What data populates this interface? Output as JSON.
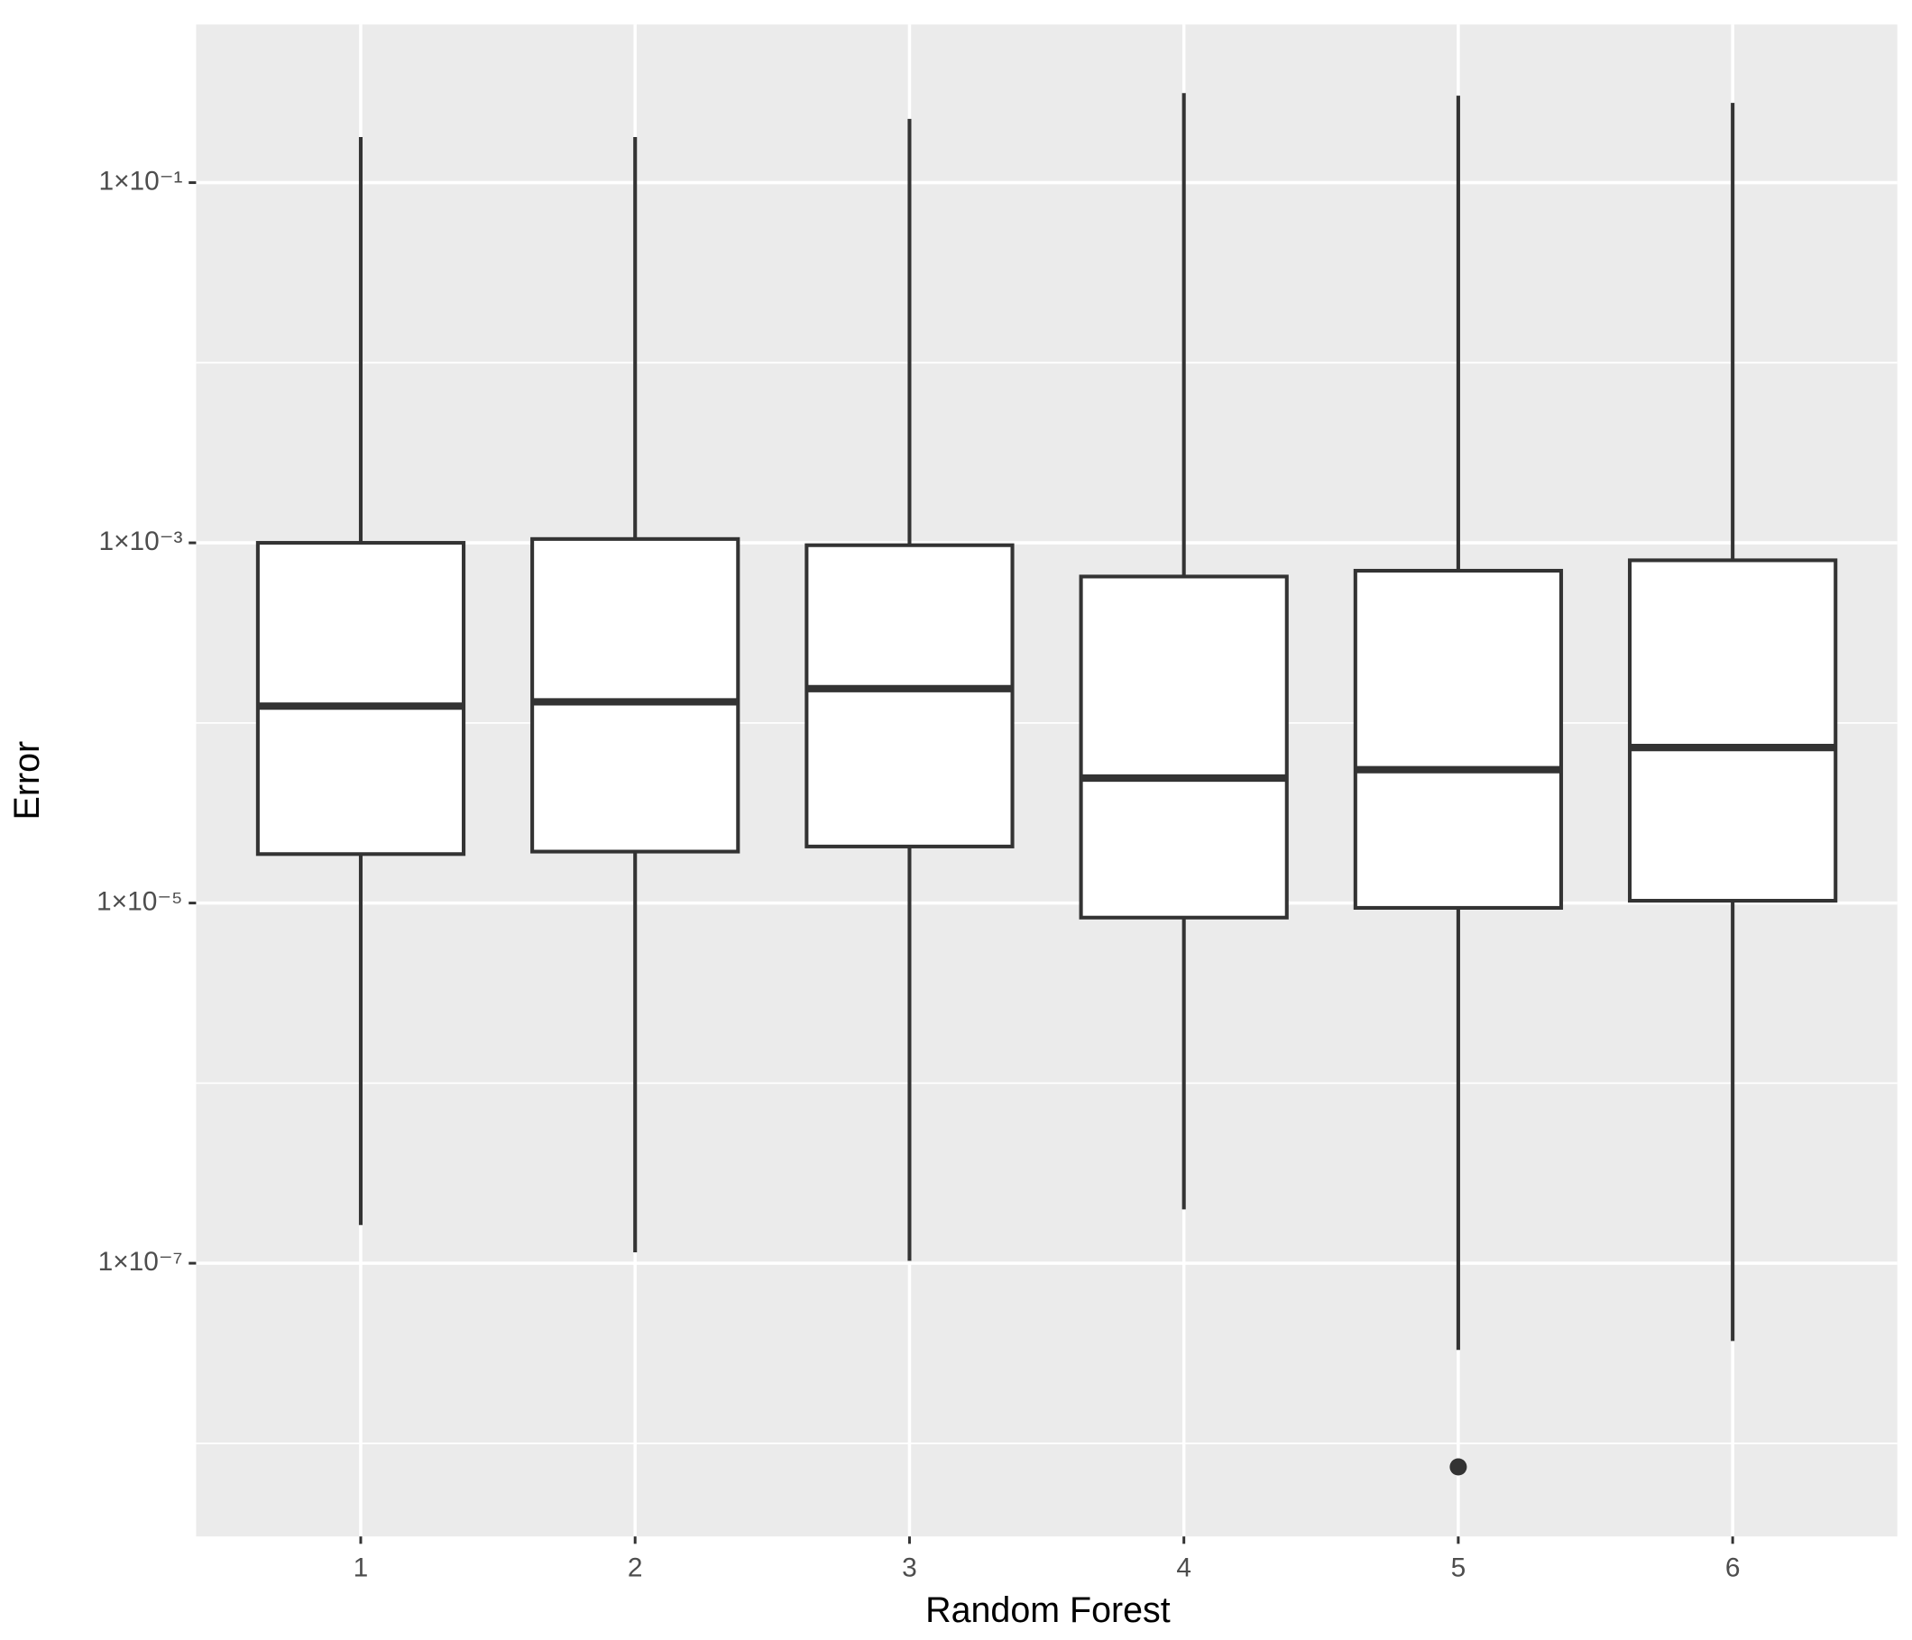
{
  "chart_data": {
    "type": "box",
    "xlabel": "Random Forest",
    "ylabel": "Error",
    "categories": [
      "1",
      "2",
      "3",
      "4",
      "5",
      "6"
    ],
    "series": [
      {
        "name": null,
        "boxes": [
          {
            "whislo": 1.63e-07,
            "q1": 1.87e-05,
            "median": 0.000124,
            "q3": 0.001,
            "whishi": 0.179,
            "outliers": []
          },
          {
            "whislo": 1.15e-07,
            "q1": 1.93e-05,
            "median": 0.000131,
            "q3": 0.00105,
            "whishi": 0.179,
            "outliers": []
          },
          {
            "whislo": 1.03e-07,
            "q1": 2.06e-05,
            "median": 0.000155,
            "q3": 0.00097,
            "whishi": 0.226,
            "outliers": []
          },
          {
            "whislo": 1.99e-07,
            "q1": 8.3e-06,
            "median": 4.94e-05,
            "q3": 0.00065,
            "whishi": 0.314,
            "outliers": []
          },
          {
            "whislo": 3.3e-08,
            "q1": 9.4e-06,
            "median": 5.5e-05,
            "q3": 0.0007,
            "whishi": 0.304,
            "outliers": [
              7.4e-09
            ]
          },
          {
            "whislo": 3.7e-08,
            "q1": 1.03e-05,
            "median": 7.3e-05,
            "q3": 0.0008,
            "whishi": 0.277,
            "outliers": []
          }
        ]
      }
    ],
    "ylog": true,
    "ylim": [
      3.04e-09,
      0.755
    ],
    "yticks": [
      {
        "value": 0.1,
        "label": "1×10⁻¹"
      },
      {
        "value": 0.001,
        "label": "1×10⁻³"
      },
      {
        "value": 1e-05,
        "label": "1×10⁻⁵"
      },
      {
        "value": 1e-07,
        "label": "1×10⁻⁷"
      }
    ],
    "minor_yticks": [
      0.01,
      0.0001,
      1e-06,
      1e-08
    ],
    "grid": true,
    "box_color": "#333333",
    "box_fill": "#ffffff",
    "panel_color": "#ebebeb"
  }
}
